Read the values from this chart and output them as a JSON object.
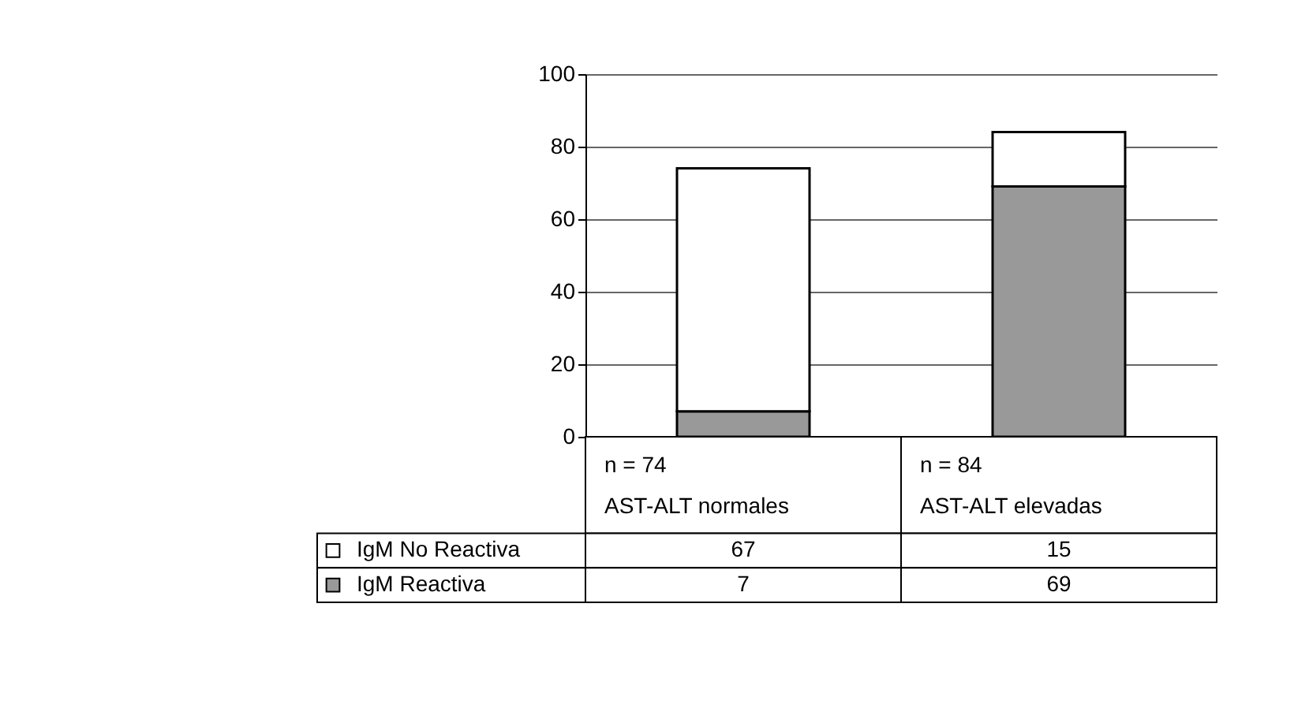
{
  "chart_data": {
    "type": "bar",
    "stacked": true,
    "categories": [
      "n = 74\nAST-ALT normales",
      "n = 84\nAST-ALT elevadas"
    ],
    "series": [
      {
        "name": "IgM Reactiva",
        "color": "#999999",
        "values": [
          7,
          69
        ]
      },
      {
        "name": "IgM No Reactiva",
        "color": "#ffffff",
        "values": [
          67,
          15
        ]
      }
    ],
    "ylim": [
      0,
      100
    ],
    "yticks": [
      0,
      20,
      40,
      60,
      80,
      100
    ],
    "grid": "y",
    "legend": "bottom",
    "data_labels": true
  }
}
